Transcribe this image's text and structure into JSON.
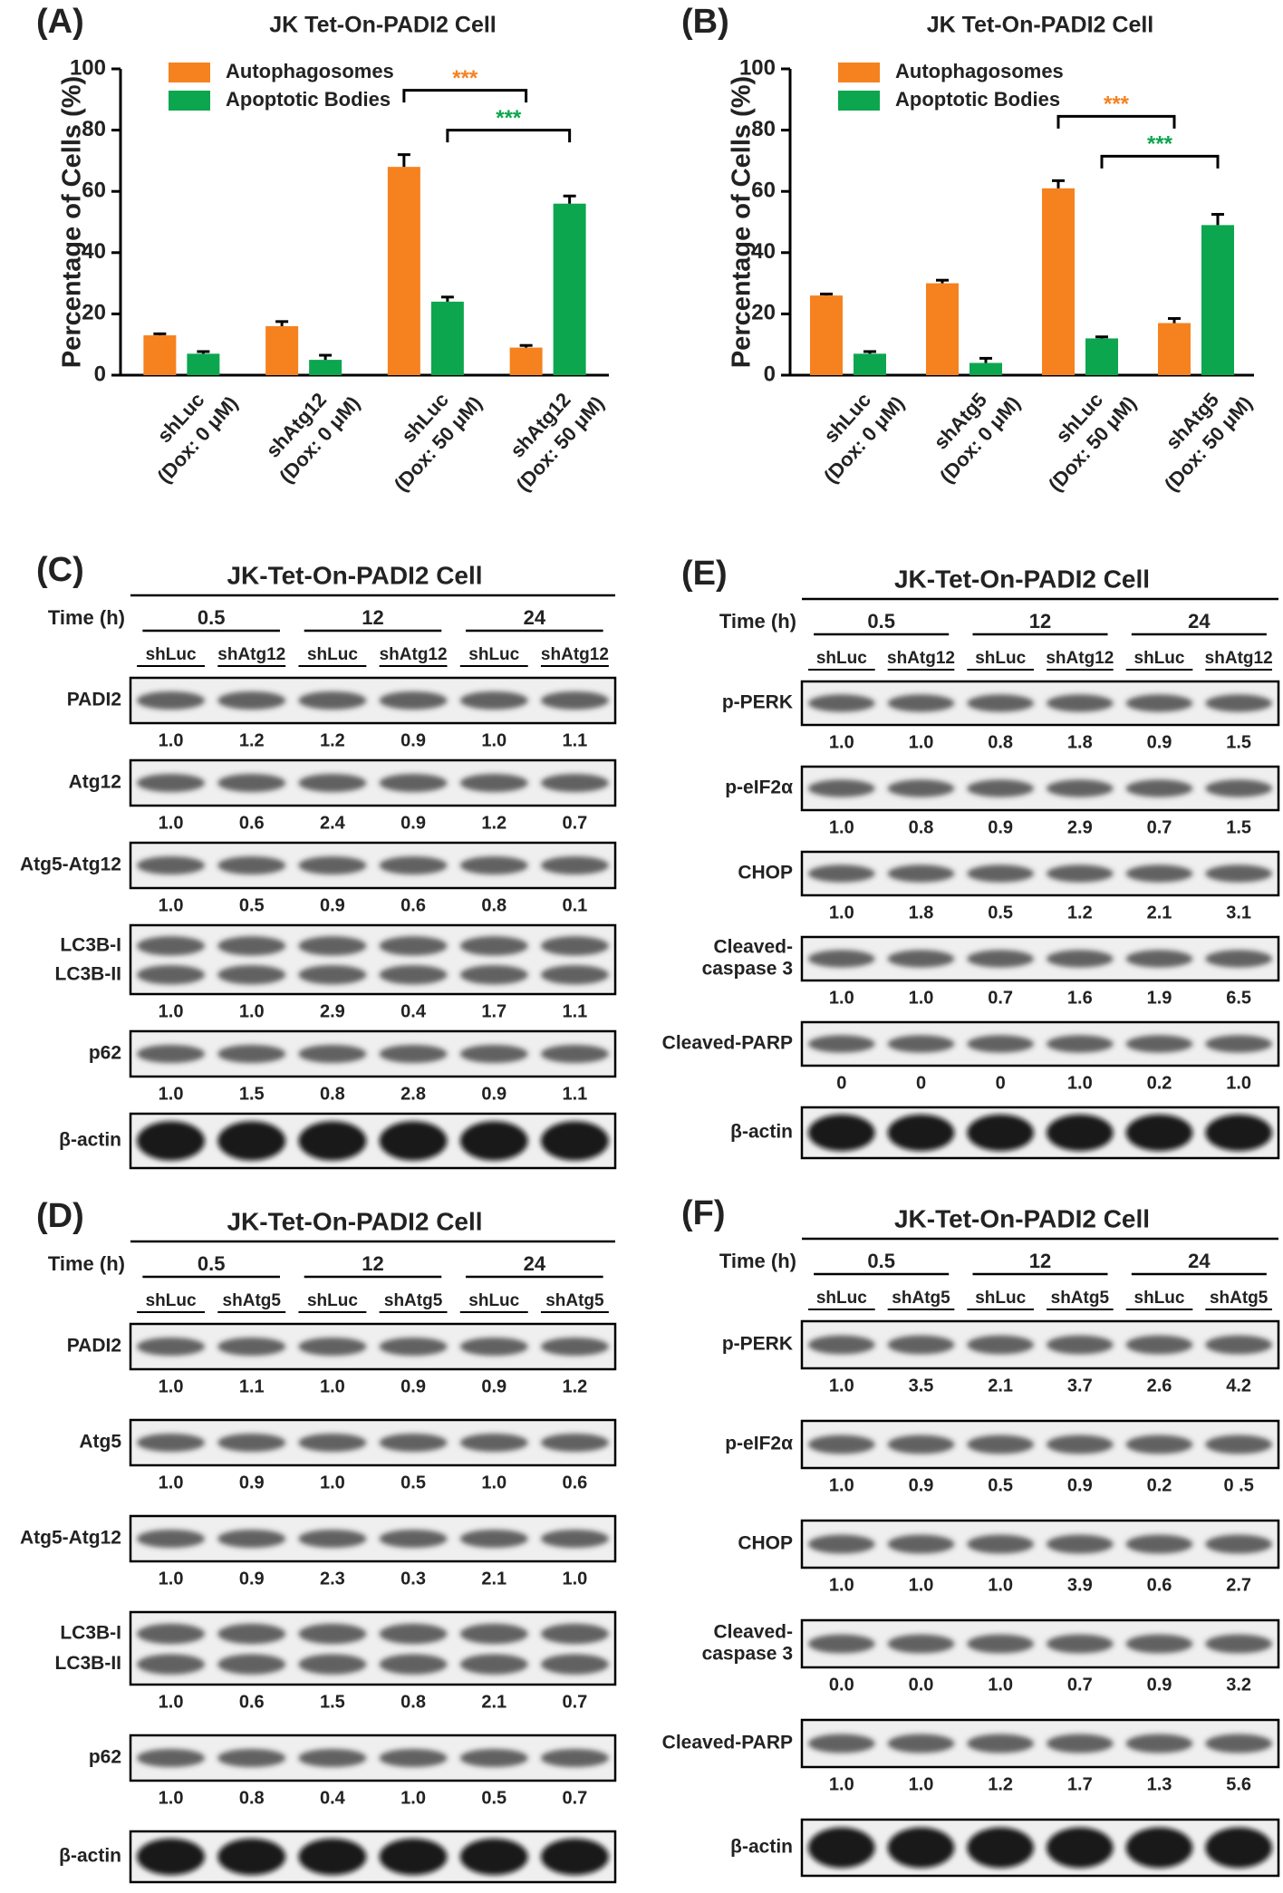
{
  "chart_data": [
    {
      "type": "bar",
      "panel": "(A)",
      "title": "JK Tet-On-PADI2 Cell",
      "ylabel": "Percentage of Cells (%)",
      "categories": [
        [
          "shLuc",
          "(Dox: 0 μM)"
        ],
        [
          "shAtg12",
          "(Dox: 0 μM)"
        ],
        [
          "shLuc",
          "(Dox: 50 μM)"
        ],
        [
          "shAtg12",
          "(Dox: 50 μM)"
        ]
      ],
      "series": [
        {
          "name": "Autophagosomes",
          "color": "#f5821f",
          "values": [
            13,
            16,
            68,
            9
          ],
          "errors": [
            0.5,
            1.5,
            4,
            0.7
          ]
        },
        {
          "name": "Apoptotic Bodies",
          "color": "#0ca64e",
          "values": [
            7,
            5,
            24,
            56
          ],
          "errors": [
            0.7,
            1.5,
            1.5,
            2.5
          ]
        }
      ],
      "annotations": [
        {
          "text": "***",
          "color": "#f5821f"
        },
        {
          "text": "***",
          "color": "#0ca64e"
        }
      ],
      "ylim": [
        0,
        100
      ],
      "yticks": [
        0,
        20,
        40,
        60,
        80,
        100
      ],
      "grid": false,
      "legend": "upper left"
    },
    {
      "type": "bar",
      "panel": "(B)",
      "title": "JK Tet-On-PADI2 Cell",
      "ylabel": "Percentage of Cells (%)",
      "categories": [
        [
          "shLuc",
          "(Dox: 0 μM)"
        ],
        [
          "shAtg5",
          "(Dox: 0 μM)"
        ],
        [
          "shLuc",
          "(Dox: 50 μM)"
        ],
        [
          "shAtg5",
          "(Dox: 50 μM)"
        ]
      ],
      "series": [
        {
          "name": "Autophagosomes",
          "color": "#f5821f",
          "values": [
            26,
            30,
            61,
            17
          ],
          "errors": [
            0.5,
            1,
            2.5,
            1.5
          ]
        },
        {
          "name": "Apoptotic Bodies",
          "color": "#0ca64e",
          "values": [
            7,
            4,
            12,
            49
          ],
          "errors": [
            0.7,
            1.5,
            0.5,
            3.5
          ]
        }
      ],
      "annotations": [
        {
          "text": "***",
          "color": "#f5821f"
        },
        {
          "text": "***",
          "color": "#0ca64e"
        }
      ],
      "ylim": [
        0,
        100
      ],
      "yticks": [
        0,
        20,
        40,
        60,
        80,
        100
      ],
      "grid": false,
      "legend": "upper left"
    }
  ],
  "blots": [
    {
      "panel": "(C)",
      "title": "JK-Tet-On-PADI2 Cell",
      "time_label": "Time (h)",
      "times": [
        "0.5",
        "12",
        "24"
      ],
      "lanes": [
        "shLuc",
        "shAtg12",
        "shLuc",
        "shAtg12",
        "shLuc",
        "shAtg12"
      ],
      "rows": [
        {
          "label": [
            "PADI2"
          ],
          "values": [
            "1.0",
            "1.2",
            "1.2",
            "0.9",
            "1.0",
            "1.1"
          ]
        },
        {
          "label": [
            "Atg12"
          ],
          "values": [
            "1.0",
            "0.6",
            "2.4",
            "0.9",
            "1.2",
            "0.7"
          ]
        },
        {
          "label": [
            "Atg5-Atg12"
          ],
          "values": [
            "1.0",
            "0.5",
            "0.9",
            "0.6",
            "0.8",
            "0.1"
          ]
        },
        {
          "band_labels": [
            "LC3B-I",
            "LC3B-II"
          ],
          "values": [
            "1.0",
            "1.0",
            "2.9",
            "0.4",
            "1.7",
            "1.1"
          ]
        },
        {
          "label": [
            "p62"
          ],
          "values": [
            "1.0",
            "1.5",
            "0.8",
            "2.8",
            "0.9",
            "1.1"
          ]
        },
        {
          "label": [
            "β-actin"
          ]
        }
      ]
    },
    {
      "panel": "(D)",
      "title": "JK-Tet-On-PADI2 Cell",
      "time_label": "Time (h)",
      "times": [
        "0.5",
        "12",
        "24"
      ],
      "lanes": [
        "shLuc",
        "shAtg5",
        "shLuc",
        "shAtg5",
        "shLuc",
        "shAtg5"
      ],
      "rows": [
        {
          "label": [
            "PADI2"
          ],
          "values": [
            "1.0",
            "1.1",
            "1.0",
            "0.9",
            "0.9",
            "1.2"
          ]
        },
        {
          "label": [
            "Atg5"
          ],
          "values": [
            "1.0",
            "0.9",
            "1.0",
            "0.5",
            "1.0",
            "0.6"
          ]
        },
        {
          "label": [
            "Atg5-Atg12"
          ],
          "values": [
            "1.0",
            "0.9",
            "2.3",
            "0.3",
            "2.1",
            "1.0"
          ]
        },
        {
          "band_labels": [
            "LC3B-I",
            "LC3B-II"
          ],
          "values": [
            "1.0",
            "0.6",
            "1.5",
            "0.8",
            "2.1",
            "0.7"
          ]
        },
        {
          "label": [
            "p62"
          ],
          "values": [
            "1.0",
            "0.8",
            "0.4",
            "1.0",
            "0.5",
            "0.7"
          ]
        },
        {
          "label": [
            "β-actin"
          ]
        }
      ]
    },
    {
      "panel": "(E)",
      "title": "JK-Tet-On-PADI2 Cell",
      "time_label": "Time (h)",
      "times": [
        "0.5",
        "12",
        "24"
      ],
      "lanes": [
        "shLuc",
        "shAtg12",
        "shLuc",
        "shAtg12",
        "shLuc",
        "shAtg12"
      ],
      "rows": [
        {
          "label": [
            "p-PERK"
          ],
          "values": [
            "1.0",
            "1.0",
            "0.8",
            "1.8",
            "0.9",
            "1.5"
          ]
        },
        {
          "label": [
            "p-eIF2α"
          ],
          "values": [
            "1.0",
            "0.8",
            "0.9",
            "2.9",
            "0.7",
            "1.5"
          ]
        },
        {
          "label": [
            "CHOP"
          ],
          "values": [
            "1.0",
            "1.8",
            "0.5",
            "1.2",
            "2.1",
            "3.1"
          ]
        },
        {
          "label": [
            "Cleaved-",
            "caspase 3"
          ],
          "values": [
            "1.0",
            "1.0",
            "0.7",
            "1.6",
            "1.9",
            "6.5"
          ]
        },
        {
          "label": [
            "Cleaved-PARP"
          ],
          "values": [
            "0",
            "0",
            "0",
            "1.0",
            "0.2",
            "1.0"
          ]
        },
        {
          "label": [
            "β-actin"
          ]
        }
      ]
    },
    {
      "panel": "(F)",
      "title": "JK-Tet-On-PADI2 Cell",
      "time_label": "Time (h)",
      "times": [
        "0.5",
        "12",
        "24"
      ],
      "lanes": [
        "shLuc",
        "shAtg5",
        "shLuc",
        "shAtg5",
        "shLuc",
        "shAtg5"
      ],
      "rows": [
        {
          "label": [
            "p-PERK"
          ],
          "values": [
            "1.0",
            "3.5",
            "2.1",
            "3.7",
            "2.6",
            "4.2"
          ]
        },
        {
          "label": [
            "p-eIF2α"
          ],
          "values": [
            "1.0",
            "0.9",
            "0.5",
            "0.9",
            "0.2",
            "0 .5"
          ]
        },
        {
          "label": [
            "CHOP"
          ],
          "values": [
            "1.0",
            "1.0",
            "1.0",
            "3.9",
            "0.6",
            "2.7"
          ]
        },
        {
          "label": [
            "Cleaved-",
            "caspase 3"
          ],
          "values": [
            "0.0",
            "0.0",
            "1.0",
            "0.7",
            "0.9",
            "3.2"
          ]
        },
        {
          "label": [
            "Cleaved-PARP"
          ],
          "values": [
            "1.0",
            "1.0",
            "1.2",
            "1.7",
            "1.3",
            "5.6"
          ]
        },
        {
          "label": [
            "β-actin"
          ]
        }
      ]
    }
  ]
}
